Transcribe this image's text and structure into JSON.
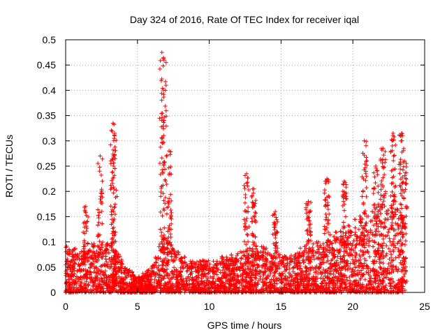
{
  "chart_data": {
    "type": "scatter",
    "title": "Day 324 of 2016, Rate Of TEC Index for receiver iqal",
    "xlabel": "GPS time / hours",
    "ylabel": "ROTI / TECUs",
    "xlim": [
      0,
      25
    ],
    "ylim": [
      0,
      0.5
    ],
    "x_ticks": [
      0,
      5,
      10,
      15,
      20,
      25
    ],
    "y_ticks": [
      0,
      0.05,
      0.1,
      0.15,
      0.2,
      0.25,
      0.3,
      0.35,
      0.4,
      0.45,
      0.5
    ],
    "grid": true,
    "marker": "+",
    "series_color": "#ff0000",
    "baseline_profile": [
      [
        0,
        0.06
      ],
      [
        0.5,
        0.06
      ],
      [
        1,
        0.05
      ],
      [
        2,
        0.07
      ],
      [
        3,
        0.07
      ],
      [
        4,
        0.04
      ],
      [
        5,
        0.02
      ],
      [
        6,
        0.03
      ],
      [
        6.8,
        0.08
      ],
      [
        7.5,
        0.06
      ],
      [
        8.5,
        0.04
      ],
      [
        10,
        0.04
      ],
      [
        12,
        0.05
      ],
      [
        13.5,
        0.06
      ],
      [
        15,
        0.05
      ],
      [
        17,
        0.06
      ],
      [
        18,
        0.07
      ],
      [
        19,
        0.08
      ],
      [
        20,
        0.09
      ],
      [
        21,
        0.1
      ],
      [
        22,
        0.12
      ],
      [
        23,
        0.12
      ],
      [
        23.7,
        0.1
      ]
    ],
    "peaks": [
      {
        "x": 1.4,
        "y": 0.17
      },
      {
        "x": 2.4,
        "y": 0.27
      },
      {
        "x": 3.3,
        "y": 0.335
      },
      {
        "x": 3.4,
        "y": 0.31
      },
      {
        "x": 6.7,
        "y": 0.475
      },
      {
        "x": 6.85,
        "y": 0.46
      },
      {
        "x": 7.2,
        "y": 0.28
      },
      {
        "x": 12.6,
        "y": 0.235
      },
      {
        "x": 13.1,
        "y": 0.205
      },
      {
        "x": 14.6,
        "y": 0.16
      },
      {
        "x": 16.9,
        "y": 0.18
      },
      {
        "x": 18.2,
        "y": 0.225
      },
      {
        "x": 19.4,
        "y": 0.22
      },
      {
        "x": 20.8,
        "y": 0.3
      },
      {
        "x": 21.6,
        "y": 0.25
      },
      {
        "x": 22.1,
        "y": 0.285
      },
      {
        "x": 22.8,
        "y": 0.315
      },
      {
        "x": 23.4,
        "y": 0.315
      },
      {
        "x": 23.6,
        "y": 0.26
      }
    ],
    "x_range_data": [
      0,
      23.7
    ]
  }
}
